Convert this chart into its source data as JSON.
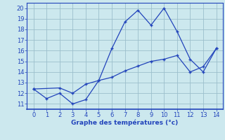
{
  "line1_x": [
    0,
    1,
    2,
    3,
    4,
    5,
    6,
    7,
    8,
    9,
    10,
    11,
    12,
    13,
    14
  ],
  "line1_y": [
    12.4,
    11.5,
    12.0,
    11.0,
    11.4,
    13.2,
    16.2,
    18.7,
    19.8,
    18.4,
    20.0,
    17.8,
    15.2,
    14.0,
    16.2
  ],
  "line2_x": [
    0,
    2,
    3,
    4,
    5,
    6,
    7,
    8,
    9,
    10,
    11,
    12,
    13,
    14
  ],
  "line2_y": [
    12.4,
    12.5,
    12.0,
    12.85,
    13.2,
    13.5,
    14.1,
    14.55,
    15.0,
    15.2,
    15.55,
    14.0,
    14.5,
    16.2
  ],
  "line_color": "#2244bb",
  "bg_color": "#cce8ee",
  "grid_color": "#9bbfcc",
  "xlabel": "Graphe des températures (°c)",
  "xlim": [
    -0.5,
    14.5
  ],
  "ylim": [
    10.5,
    20.5
  ],
  "xticks": [
    0,
    1,
    2,
    3,
    4,
    5,
    6,
    7,
    8,
    9,
    10,
    11,
    12,
    13,
    14
  ],
  "yticks": [
    11,
    12,
    13,
    14,
    15,
    16,
    17,
    18,
    19,
    20
  ],
  "xlabel_color": "#2244bb",
  "tick_color": "#2244bb",
  "spine_color": "#2244bb"
}
